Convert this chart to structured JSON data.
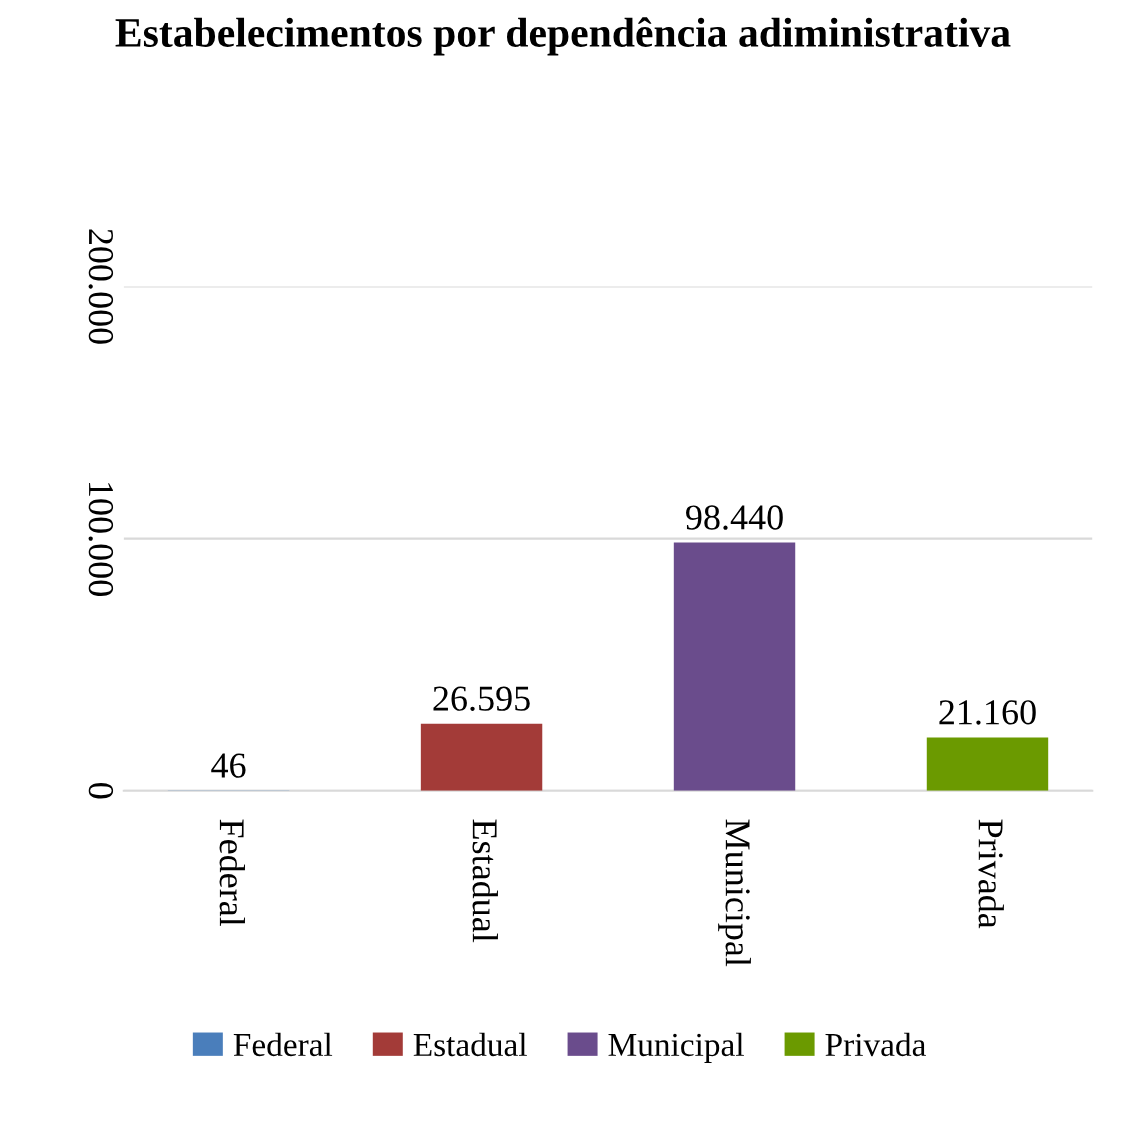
{
  "chart_data": {
    "type": "bar",
    "title": "Estabelecimentos por dependência adiministrativa",
    "categories": [
      "Federal",
      "Estadual",
      "Municipal",
      "Privada"
    ],
    "series": [
      {
        "name": "Federal",
        "color": "#4a7ebb",
        "values": [
          46,
          null,
          null,
          null
        ],
        "value_labels": [
          "46",
          null,
          null,
          null
        ]
      },
      {
        "name": "Estadual",
        "color": "#a33b38",
        "values": [
          null,
          26595,
          null,
          null
        ],
        "value_labels": [
          null,
          "26.595",
          null,
          null
        ]
      },
      {
        "name": "Municipal",
        "color": "#6a4c8c",
        "values": [
          null,
          null,
          98440,
          null
        ],
        "value_labels": [
          null,
          null,
          "98.440",
          null
        ]
      },
      {
        "name": "Privada",
        "color": "#6b9a00",
        "values": [
          null,
          null,
          null,
          21160
        ],
        "value_labels": [
          null,
          null,
          null,
          "21.160"
        ]
      }
    ],
    "ylim": [
      0,
      200000
    ],
    "yticks": [
      {
        "value": 0,
        "label": "0"
      },
      {
        "value": 100000,
        "label": "100.000"
      },
      {
        "value": 200000,
        "label": "200.000"
      }
    ],
    "grid": "y",
    "legend": "bottom"
  }
}
